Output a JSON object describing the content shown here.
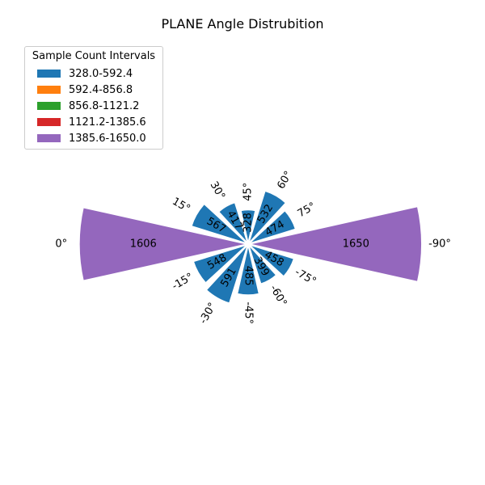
{
  "chart_data": {
    "type": "bar",
    "subtype": "polar",
    "title": "PLANE Angle Distrubition",
    "categories": [
      "-90°",
      "-75°",
      "-60°",
      "-45°",
      "-30°",
      "-15°",
      "0°",
      "15°",
      "30°",
      "45°",
      "60°",
      "75°"
    ],
    "values": [
      1650,
      458,
      399,
      485,
      591,
      548,
      1606,
      567,
      417,
      328,
      532,
      474
    ],
    "legend": {
      "title": "Sample Count Intervals",
      "position": "top-left",
      "items": [
        {
          "label": "328.0-592.4",
          "color": "#1f77b4"
        },
        {
          "label": "592.4-856.8",
          "color": "#ff7f0e"
        },
        {
          "label": "856.8-1121.2",
          "color": "#2ca02c"
        },
        {
          "label": "1121.2-1385.6",
          "color": "#d62728"
        },
        {
          "label": "1385.6-1650.0",
          "color": "#9467bd"
        }
      ]
    },
    "interval_bounds": [
      328.0,
      592.4,
      856.8,
      1121.2,
      1385.6,
      1650.0
    ],
    "grid": false
  }
}
